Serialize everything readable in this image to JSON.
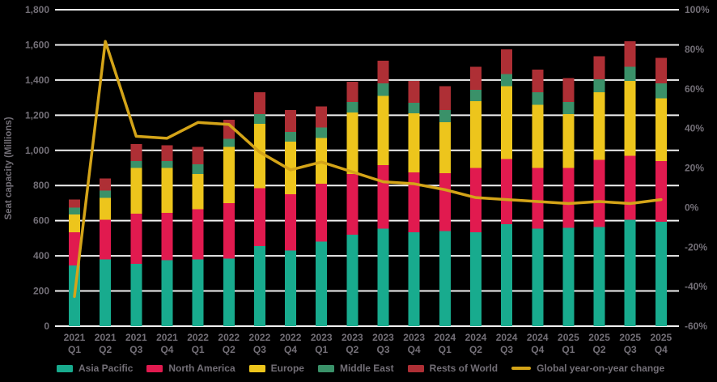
{
  "chart_data": {
    "type": "bar",
    "subtype": "stacked-column-with-line",
    "title": "",
    "ylabel": "Seat capacity (Millions)",
    "xlabel": "",
    "grid": true,
    "background_color": "#000000",
    "gridline_color": "#f1f1f1",
    "text_color": "#736f77",
    "legend_position": "bottom",
    "categories": [
      "2021 Q1",
      "2021 Q2",
      "2021 Q3",
      "2021 Q4",
      "2022 Q1",
      "2022 Q2",
      "2022 Q3",
      "2022 Q4",
      "2023 Q1",
      "2023 Q2",
      "2023 Q3",
      "2023 Q4",
      "2024 Q1",
      "2024 Q2",
      "2024 Q3",
      "2024 Q4",
      "2025 Q1",
      "2025 Q2",
      "2025 Q3",
      "2025 Q4"
    ],
    "y_left": {
      "min": 0,
      "max": 1800,
      "step": 200
    },
    "y_right": {
      "min": -60,
      "max": 100,
      "step": 20,
      "format": "percent"
    },
    "series": [
      {
        "name": "Asia Pacific",
        "color": "#18ab8e",
        "values": [
          345,
          380,
          355,
          375,
          380,
          385,
          455,
          430,
          480,
          520,
          555,
          535,
          540,
          535,
          580,
          555,
          560,
          565,
          605,
          595
        ]
      },
      {
        "name": "North America",
        "color": "#e11a4f",
        "values": [
          190,
          225,
          285,
          270,
          285,
          315,
          330,
          320,
          330,
          345,
          360,
          340,
          330,
          365,
          370,
          345,
          340,
          380,
          365,
          345
        ]
      },
      {
        "name": "Europe",
        "color": "#edc51c",
        "values": [
          100,
          125,
          260,
          255,
          200,
          320,
          365,
          300,
          260,
          350,
          395,
          335,
          290,
          380,
          415,
          360,
          305,
          385,
          425,
          355
        ]
      },
      {
        "name": "Middle East",
        "color": "#3a9169",
        "values": [
          40,
          40,
          40,
          40,
          55,
          45,
          55,
          55,
          60,
          60,
          70,
          60,
          70,
          65,
          70,
          70,
          70,
          75,
          80,
          85
        ]
      },
      {
        "name": "Rests of World",
        "color": "#ae2f35",
        "values": [
          45,
          70,
          95,
          90,
          100,
          110,
          125,
          125,
          120,
          115,
          130,
          125,
          135,
          130,
          140,
          130,
          135,
          130,
          145,
          145
        ]
      }
    ],
    "line_series": {
      "name": "Global year-on-year change",
      "color": "#d4a418",
      "axis": "right",
      "values": [
        -45,
        84,
        36,
        35,
        43,
        42,
        28,
        19,
        23,
        18,
        13,
        12,
        9,
        5,
        4,
        3,
        2,
        3,
        2,
        4
      ]
    }
  }
}
